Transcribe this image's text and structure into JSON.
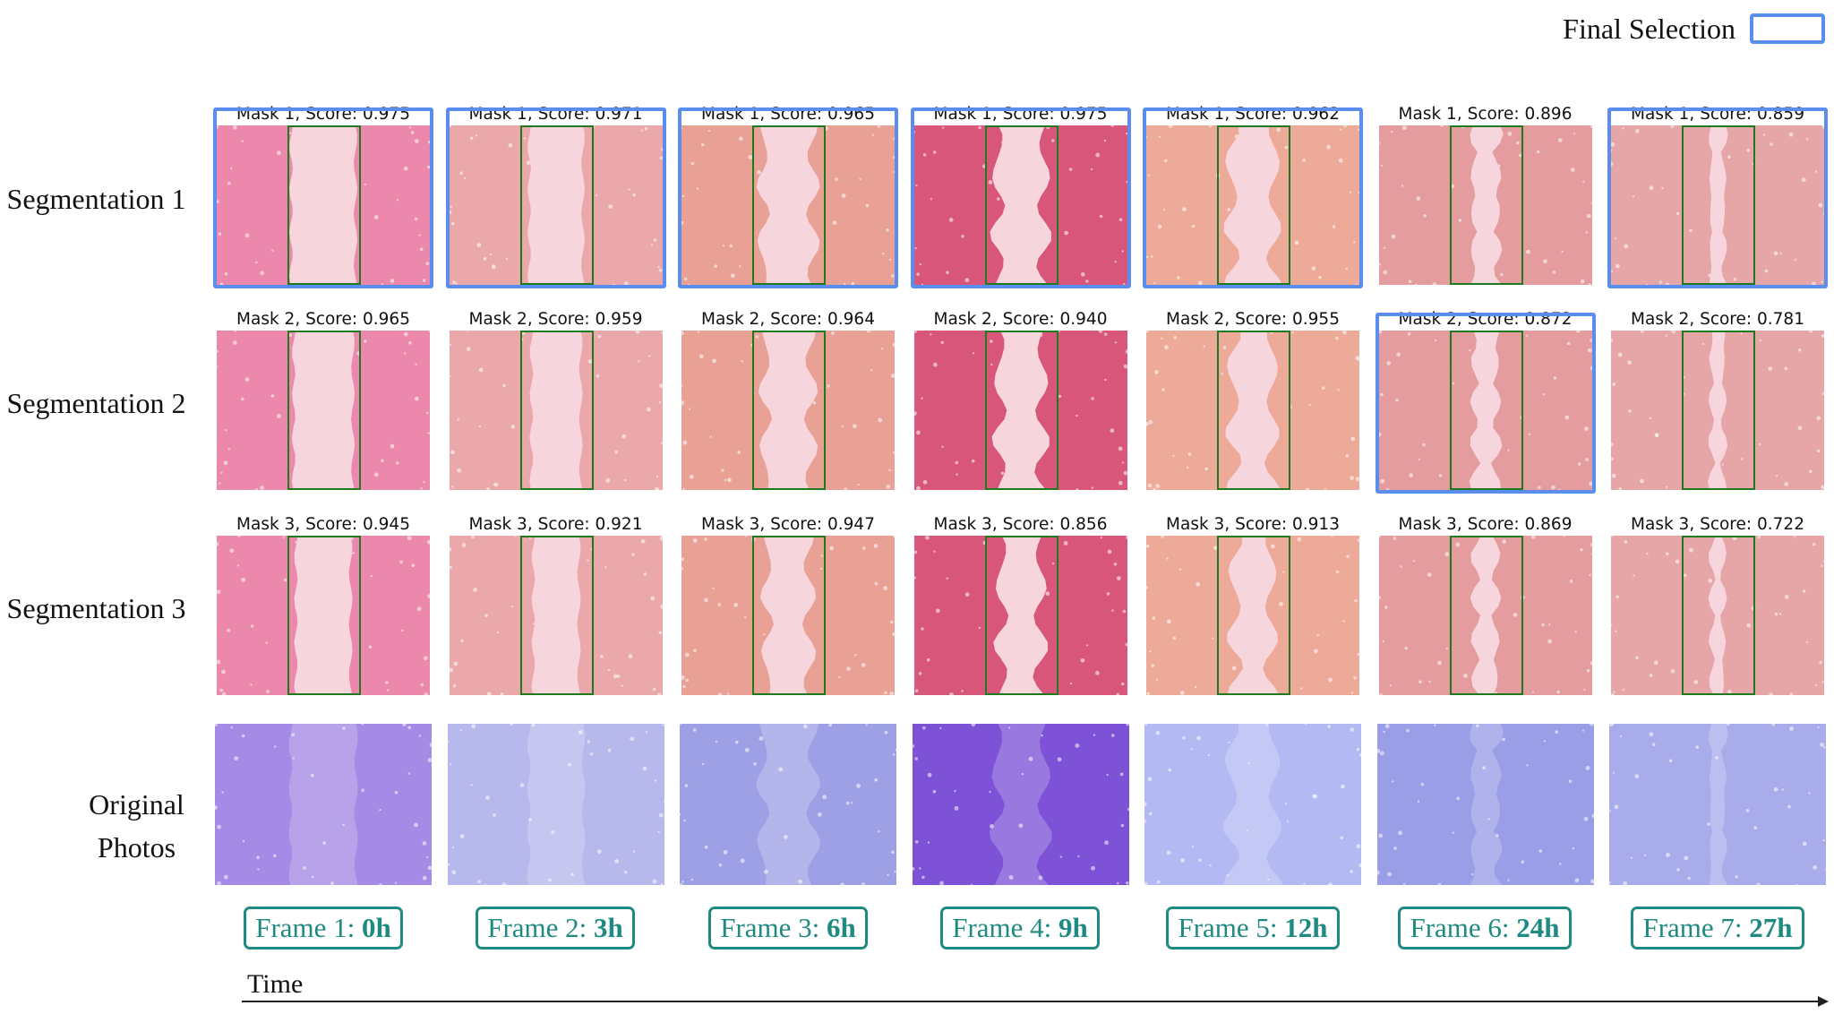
{
  "legend": {
    "label": "Final Selection",
    "color": "#5b8def"
  },
  "row_labels": [
    "Segmentation 1",
    "Segmentation 2",
    "Segmentation 3"
  ],
  "original_label": [
    "Original",
    "Photos"
  ],
  "masks": [
    [
      {
        "label": "Mask 1, Score: 0.975",
        "selected": true
      },
      {
        "label": "Mask 1, Score: 0.971",
        "selected": true
      },
      {
        "label": "Mask 1, Score: 0.965",
        "selected": true
      },
      {
        "label": "Mask 1, Score: 0.975",
        "selected": true
      },
      {
        "label": "Mask 1, Score: 0.962",
        "selected": true
      },
      {
        "label": "Mask 1, Score: 0.896",
        "selected": false
      },
      {
        "label": "Mask 1, Score: 0.859",
        "selected": true
      }
    ],
    [
      {
        "label": "Mask 2, Score: 0.965",
        "selected": false
      },
      {
        "label": "Mask 2, Score: 0.959",
        "selected": false
      },
      {
        "label": "Mask 2, Score: 0.964",
        "selected": false
      },
      {
        "label": "Mask 2, Score: 0.940",
        "selected": false
      },
      {
        "label": "Mask 2, Score: 0.955",
        "selected": false
      },
      {
        "label": "Mask 2, Score: 0.872",
        "selected": true
      },
      {
        "label": "Mask 2, Score: 0.781",
        "selected": false
      }
    ],
    [
      {
        "label": "Mask 3, Score: 0.945",
        "selected": false
      },
      {
        "label": "Mask 3, Score: 0.921",
        "selected": false
      },
      {
        "label": "Mask 3, Score: 0.947",
        "selected": false
      },
      {
        "label": "Mask 3, Score: 0.856",
        "selected": false
      },
      {
        "label": "Mask 3, Score: 0.913",
        "selected": false
      },
      {
        "label": "Mask 3, Score: 0.869",
        "selected": false
      },
      {
        "label": "Mask 3, Score: 0.722",
        "selected": false
      }
    ]
  ],
  "frames": [
    {
      "prefix": "Frame 1: ",
      "time": "0h"
    },
    {
      "prefix": "Frame 2: ",
      "time": "3h"
    },
    {
      "prefix": "Frame 3: ",
      "time": "6h"
    },
    {
      "prefix": "Frame 4: ",
      "time": "9h"
    },
    {
      "prefix": "Frame 5: ",
      "time": "12h"
    },
    {
      "prefix": "Frame 6: ",
      "time": "24h"
    },
    {
      "prefix": "Frame 7: ",
      "time": "27h"
    }
  ],
  "mask_colors": [
    "#ec88ac",
    "#eba8ab",
    "#e9a095",
    "#d8567a",
    "#eeaa98",
    "#e59c9e",
    "#e6a5a6"
  ],
  "photo_colors": [
    "#a58ae6",
    "#b7b8ec",
    "#9ea0e6",
    "#7d52d6",
    "#b3b9f2",
    "#9a9ee6",
    "#a8acea"
  ],
  "box_color": "#1f7a1f",
  "axis_label": "Time"
}
